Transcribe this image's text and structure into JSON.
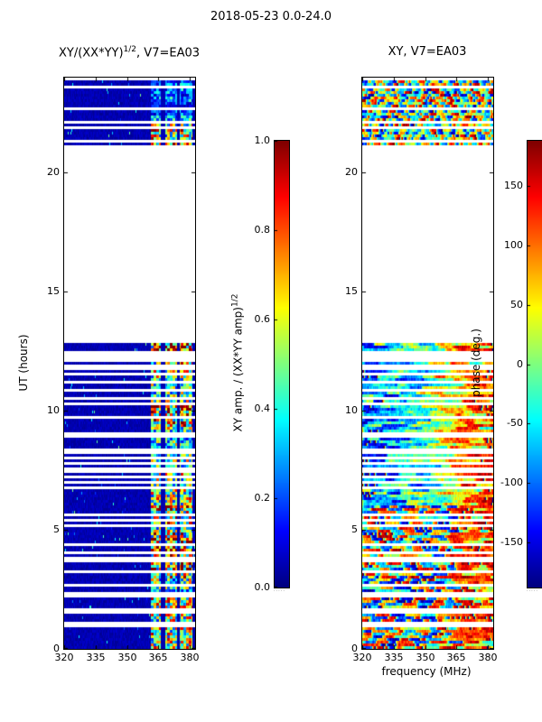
{
  "figure": {
    "title": "2018-05-23 0.0-24.0"
  },
  "chart_data": [
    {
      "id": "xy_over_sqrt_xxyy",
      "type": "heatmap",
      "title_pre": "XY/(XX*YY)",
      "title_sup": "1/2",
      "title_post": ", V7=EA03",
      "xlabel": "",
      "ylabel": "UT (hours)",
      "xlim": [
        320,
        382.5
      ],
      "ylim": [
        0,
        24
      ],
      "xticks": [
        "320",
        "335",
        "350",
        "365",
        "380"
      ],
      "yticks": [
        "0",
        "5",
        "10",
        "15",
        "20"
      ],
      "cmap": "jet",
      "no_data_color": "#ffffff",
      "data_time_intervals_hours": [
        [
          0,
          12.9
        ],
        [
          21.1,
          24
        ]
      ],
      "gap_row_fraction": 0.22,
      "background_amp_range": [
        0.02,
        0.08
      ],
      "bright_band": {
        "freq_mhz": [
          361,
          381
        ],
        "amp_range": [
          0.1,
          1.0
        ],
        "dark_subband_freq_mhz": [
          [
            366.2,
            368.2
          ],
          [
            373.8,
            375.3
          ]
        ]
      },
      "content_note": "Cross-amplitude ratio dynamic spectrum: dark blue (~0.05) off-band, bright blocky 361-381 MHz band; thin white rows = missing scans; solid white 12.9-21.1 UT = no data",
      "colorbar": {
        "label_pre": "XY amp. / (XX*YY amp)",
        "label_sup": "1/2",
        "range": [
          0,
          1
        ],
        "ticks": [
          "0.0",
          "0.2",
          "0.4",
          "0.6",
          "0.8",
          "1.0"
        ],
        "small_text": "....."
      }
    },
    {
      "id": "xy_phase",
      "type": "heatmap",
      "title": "XY, V7=EA03",
      "xlabel": "frequency (MHz)",
      "ylabel": "",
      "xlim": [
        320,
        382.5
      ],
      "ylim": [
        0,
        24
      ],
      "xticks": [
        "320",
        "335",
        "350",
        "365",
        "380"
      ],
      "yticks": [
        "0",
        "5",
        "10",
        "15",
        "20"
      ],
      "cmap": "jet",
      "no_data_color": "#ffffff",
      "data_time_intervals_hours": [
        [
          0,
          12.9
        ],
        [
          21.1,
          24
        ]
      ],
      "content_note": "Cross-phase dynamic spectrum: rainbow streaky noise where data present; 0-6 UT saturated red/blue mix, 6-13 UT blue at low freq trending red at high freq, 21-24 UT chaotic; same white gaps as left panel",
      "colorbar": {
        "label": "phase (deg.)",
        "range": [
          -188,
          188
        ],
        "ticks": [
          "150",
          "100",
          "50",
          "0",
          "-50",
          "-100",
          "-150"
        ],
        "small_text": "....."
      }
    }
  ],
  "render": {
    "seed": 20180523,
    "samples": 211
  }
}
